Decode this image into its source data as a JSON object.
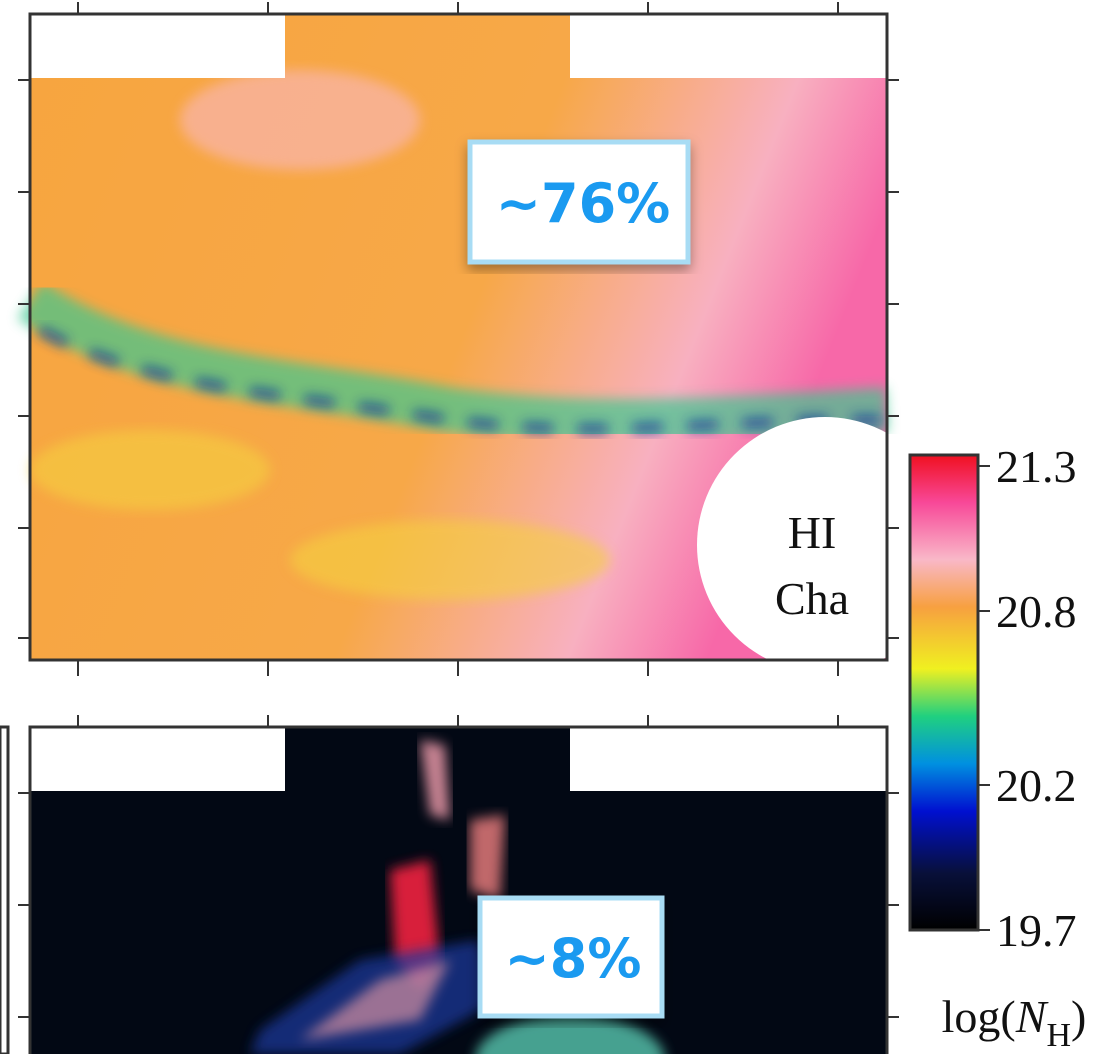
{
  "top_panel": {
    "label": "~76%",
    "region": [
      "HI",
      "Cha"
    ]
  },
  "bottom_panel": {
    "label": "~8%"
  },
  "colorbar": {
    "lim": [
      19.7,
      21.3
    ],
    "ticks": [
      21.3,
      20.8,
      20.2,
      19.7
    ],
    "label": {
      "prefix": "log(",
      "var": "N",
      "sub": "H",
      "suffix": ")"
    }
  }
}
